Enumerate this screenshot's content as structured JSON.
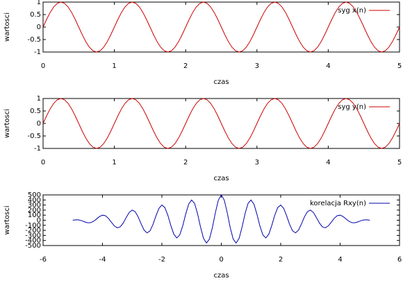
{
  "chart_data": [
    {
      "type": "line",
      "xlabel": "czas",
      "ylabel": "wartosci",
      "legend": "upper right",
      "xlim": [
        0,
        5
      ],
      "ylim": [
        -1,
        1
      ],
      "xticks": [
        0,
        1,
        2,
        3,
        4,
        5
      ],
      "yticks": [
        -1,
        -0.5,
        0,
        0.5,
        1
      ],
      "x": [
        0,
        0.05,
        0.1,
        0.15,
        0.2,
        0.25,
        0.3,
        0.35,
        0.4,
        0.45,
        0.5,
        0.55,
        0.6,
        0.65,
        0.7,
        0.75,
        0.8,
        0.85,
        0.9,
        0.95,
        1,
        1.05,
        1.1,
        1.15,
        1.2,
        1.25,
        1.3,
        1.35,
        1.4,
        1.45,
        1.5,
        1.55,
        1.6,
        1.65,
        1.7,
        1.75,
        1.8,
        1.85,
        1.9,
        1.95,
        2,
        2.05,
        2.1,
        2.15,
        2.2,
        2.25,
        2.3,
        2.35,
        2.4,
        2.45,
        2.5,
        2.55,
        2.6,
        2.65,
        2.7,
        2.75,
        2.8,
        2.85,
        2.9,
        2.95,
        3,
        3.05,
        3.1,
        3.15,
        3.2,
        3.25,
        3.3,
        3.35,
        3.4,
        3.45,
        3.5,
        3.55,
        3.6,
        3.65,
        3.7,
        3.75,
        3.8,
        3.85,
        3.9,
        3.95,
        4,
        4.05,
        4.1,
        4.15,
        4.2,
        4.25,
        4.3,
        4.35,
        4.4,
        4.45,
        4.5,
        4.55,
        4.6,
        4.65,
        4.7,
        4.75,
        4.8,
        4.85,
        4.9,
        4.95,
        5
      ],
      "series": [
        {
          "name": "syg x(n)",
          "color": "#cc0000",
          "values": [
            0,
            0.309,
            0.588,
            0.809,
            0.951,
            1,
            0.951,
            0.809,
            0.588,
            0.309,
            0,
            -0.309,
            -0.588,
            -0.809,
            -0.951,
            -1,
            -0.951,
            -0.809,
            -0.588,
            -0.309,
            0,
            0.309,
            0.588,
            0.809,
            0.951,
            1,
            0.951,
            0.809,
            0.588,
            0.309,
            0,
            -0.309,
            -0.588,
            -0.809,
            -0.951,
            -1,
            -0.951,
            -0.809,
            -0.588,
            -0.309,
            0,
            0.309,
            0.588,
            0.809,
            0.951,
            1,
            0.951,
            0.809,
            0.588,
            0.309,
            0,
            -0.309,
            -0.588,
            -0.809,
            -0.951,
            -1,
            -0.951,
            -0.809,
            -0.588,
            -0.309,
            0,
            0.309,
            0.588,
            0.809,
            0.951,
            1,
            0.951,
            0.809,
            0.588,
            0.309,
            0,
            -0.309,
            -0.588,
            -0.809,
            -0.951,
            -1,
            -0.951,
            -0.809,
            -0.588,
            -0.309,
            0,
            0.309,
            0.588,
            0.809,
            0.951,
            1,
            0.951,
            0.809,
            0.588,
            0.309,
            0,
            -0.309,
            -0.588,
            -0.809,
            -0.951,
            -1,
            -0.951,
            -0.809,
            -0.588,
            -0.309,
            0
          ]
        }
      ]
    },
    {
      "type": "line",
      "xlabel": "czas",
      "ylabel": "wartosci",
      "legend": "upper right",
      "xlim": [
        0,
        5
      ],
      "ylim": [
        -1,
        1
      ],
      "xticks": [
        0,
        1,
        2,
        3,
        4,
        5
      ],
      "yticks": [
        -1,
        -0.5,
        0,
        0.5,
        1
      ],
      "x": [
        0,
        0.05,
        0.1,
        0.15,
        0.2,
        0.25,
        0.3,
        0.35,
        0.4,
        0.45,
        0.5,
        0.55,
        0.6,
        0.65,
        0.7,
        0.75,
        0.8,
        0.85,
        0.9,
        0.95,
        1,
        1.05,
        1.1,
        1.15,
        1.2,
        1.25,
        1.3,
        1.35,
        1.4,
        1.45,
        1.5,
        1.55,
        1.6,
        1.65,
        1.7,
        1.75,
        1.8,
        1.85,
        1.9,
        1.95,
        2,
        2.05,
        2.1,
        2.15,
        2.2,
        2.25,
        2.3,
        2.35,
        2.4,
        2.45,
        2.5,
        2.55,
        2.6,
        2.65,
        2.7,
        2.75,
        2.8,
        2.85,
        2.9,
        2.95,
        3,
        3.05,
        3.1,
        3.15,
        3.2,
        3.25,
        3.3,
        3.35,
        3.4,
        3.45,
        3.5,
        3.55,
        3.6,
        3.65,
        3.7,
        3.75,
        3.8,
        3.85,
        3.9,
        3.95,
        4,
        4.05,
        4.1,
        4.15,
        4.2,
        4.25,
        4.3,
        4.35,
        4.4,
        4.45,
        4.5,
        4.55,
        4.6,
        4.65,
        4.7,
        4.75,
        4.8,
        4.85,
        4.9,
        4.95,
        5
      ],
      "series": [
        {
          "name": "syg y(n)",
          "color": "#cc0000",
          "values": [
            0,
            0.309,
            0.588,
            0.809,
            0.951,
            1,
            0.951,
            0.809,
            0.588,
            0.309,
            0,
            -0.309,
            -0.588,
            -0.809,
            -0.951,
            -1,
            -0.951,
            -0.809,
            -0.588,
            -0.309,
            0,
            0.309,
            0.588,
            0.809,
            0.951,
            1,
            0.951,
            0.809,
            0.588,
            0.309,
            0,
            -0.309,
            -0.588,
            -0.809,
            -0.951,
            -1,
            -0.951,
            -0.809,
            -0.588,
            -0.309,
            0,
            0.309,
            0.588,
            0.809,
            0.951,
            1,
            0.951,
            0.809,
            0.588,
            0.309,
            0,
            -0.309,
            -0.588,
            -0.809,
            -0.951,
            -1,
            -0.951,
            -0.809,
            -0.588,
            -0.309,
            0,
            0.309,
            0.588,
            0.809,
            0.951,
            1,
            0.951,
            0.809,
            0.588,
            0.309,
            0,
            -0.309,
            -0.588,
            -0.809,
            -0.951,
            -1,
            -0.951,
            -0.809,
            -0.588,
            -0.309,
            0,
            0.309,
            0.588,
            0.809,
            0.951,
            1,
            0.951,
            0.809,
            0.588,
            0.309,
            0,
            -0.309,
            -0.588,
            -0.809,
            -0.951,
            -1,
            -0.951,
            -0.809,
            -0.588,
            -0.309,
            0
          ]
        }
      ]
    },
    {
      "type": "line",
      "xlabel": "czas",
      "ylabel": "wartosci",
      "legend": "upper right",
      "xlim": [
        -6,
        6
      ],
      "ylim": [
        -500,
        500
      ],
      "xticks": [
        -6,
        -4,
        -2,
        0,
        2,
        4,
        6
      ],
      "yticks": [
        -500,
        -400,
        -300,
        -200,
        -100,
        0,
        100,
        200,
        300,
        400,
        500
      ],
      "x": [
        -5,
        -4.9,
        -4.8,
        -4.7,
        -4.6,
        -4.5,
        -4.4,
        -4.3,
        -4.2,
        -4.1,
        -4,
        -3.9,
        -3.8,
        -3.7,
        -3.6,
        -3.5,
        -3.4,
        -3.3,
        -3.2,
        -3.1,
        -3,
        -2.9,
        -2.8,
        -2.7,
        -2.6,
        -2.5,
        -2.4,
        -2.3,
        -2.2,
        -2.1,
        -2,
        -1.9,
        -1.8,
        -1.7,
        -1.6,
        -1.5,
        -1.4,
        -1.3,
        -1.2,
        -1.1,
        -1,
        -0.9,
        -0.8,
        -0.7,
        -0.6,
        -0.5,
        -0.4,
        -0.3,
        -0.2,
        -0.1,
        0,
        0.1,
        0.2,
        0.3,
        0.4,
        0.5,
        0.6,
        0.7,
        0.8,
        0.9,
        1,
        1.1,
        1.2,
        1.3,
        1.4,
        1.5,
        1.6,
        1.7,
        1.8,
        1.9,
        2,
        2.1,
        2.2,
        2.3,
        2.4,
        2.5,
        2.6,
        2.7,
        2.8,
        2.9,
        3,
        3.1,
        3.2,
        3.3,
        3.4,
        3.5,
        3.6,
        3.7,
        3.8,
        3.9,
        4,
        4.1,
        4.2,
        4.3,
        4.4,
        4.5,
        4.6,
        4.7,
        4.8,
        4.9,
        5
      ],
      "series": [
        {
          "name": "korelacja Rxy(n)",
          "color": "#0000aa",
          "values": [
            0,
            8.1,
            6.2,
            -9.3,
            -32.4,
            -50,
            -48.5,
            -21.6,
            24.7,
            72.8,
            100,
            89,
            37.1,
            -40.2,
            -113.3,
            -150,
            -129.4,
            -52.5,
            55.6,
            153.7,
            200,
            169.9,
            68,
            -71.1,
            -194.2,
            -250,
            -210.3,
            -83.4,
            86.5,
            234.6,
            300,
            250.8,
            98.9,
            -102,
            -275.1,
            -350,
            -291.2,
            -114.3,
            117.4,
            315.5,
            400,
            331.7,
            129.8,
            -132.9,
            -356,
            -450,
            -372.1,
            -145.2,
            148.3,
            396.4,
            500,
            396.4,
            148.3,
            -145.2,
            -372.1,
            -450,
            -356,
            -132.9,
            129.8,
            331.7,
            400,
            315.5,
            117.4,
            -114.3,
            -291.2,
            -350,
            -275.1,
            -102,
            98.9,
            250.8,
            300,
            234.6,
            86.5,
            -83.4,
            -210.3,
            -250,
            -194.2,
            -71.1,
            68,
            169.9,
            200,
            153.7,
            55.6,
            -52.5,
            -129.4,
            -150,
            -113.3,
            -40.2,
            37.1,
            89,
            100,
            72.8,
            24.7,
            -21.6,
            -48.5,
            -50,
            -32.4,
            -9.3,
            6.2,
            8.1,
            0
          ]
        }
      ]
    }
  ]
}
